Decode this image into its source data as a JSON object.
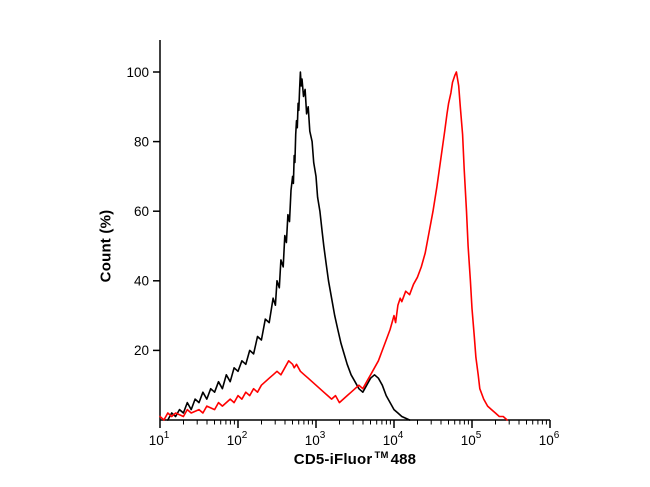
{
  "figure": {
    "background": "#ffffff"
  },
  "chart_data": {
    "type": "line",
    "subtype": "flow-cytometry-overlay-histogram",
    "title": "",
    "ylabel": "Count (%)",
    "xlabel_parts": {
      "main": "CD5-iFluor",
      "tm": "TM",
      "suffix": "488"
    },
    "x_scale": "log",
    "xlog_range": [
      1,
      6
    ],
    "x_tick_exponents": [
      1,
      2,
      3,
      4,
      5,
      6
    ],
    "ylim": [
      0,
      105
    ],
    "y_ticks": [
      20,
      40,
      60,
      80,
      100
    ],
    "grid": false,
    "legend": "none",
    "series": [
      {
        "name": "black",
        "color": "#000000",
        "points": [
          [
            1.1,
            0
          ],
          [
            1.15,
            2
          ],
          [
            1.2,
            1
          ],
          [
            1.25,
            3
          ],
          [
            1.3,
            2
          ],
          [
            1.35,
            5
          ],
          [
            1.4,
            3
          ],
          [
            1.45,
            6
          ],
          [
            1.5,
            5
          ],
          [
            1.55,
            8
          ],
          [
            1.6,
            6
          ],
          [
            1.65,
            9
          ],
          [
            1.7,
            8
          ],
          [
            1.75,
            11
          ],
          [
            1.8,
            9
          ],
          [
            1.85,
            13
          ],
          [
            1.9,
            11
          ],
          [
            1.95,
            15
          ],
          [
            2.0,
            14
          ],
          [
            2.05,
            17
          ],
          [
            2.1,
            16
          ],
          [
            2.15,
            20
          ],
          [
            2.2,
            19
          ],
          [
            2.25,
            24
          ],
          [
            2.3,
            23
          ],
          [
            2.35,
            29
          ],
          [
            2.4,
            28
          ],
          [
            2.45,
            35
          ],
          [
            2.48,
            33
          ],
          [
            2.5,
            40
          ],
          [
            2.53,
            38
          ],
          [
            2.55,
            46
          ],
          [
            2.58,
            44
          ],
          [
            2.6,
            53
          ],
          [
            2.62,
            51
          ],
          [
            2.64,
            59
          ],
          [
            2.66,
            57
          ],
          [
            2.68,
            66
          ],
          [
            2.7,
            70
          ],
          [
            2.71,
            68
          ],
          [
            2.72,
            76
          ],
          [
            2.73,
            74
          ],
          [
            2.74,
            82
          ],
          [
            2.75,
            86
          ],
          [
            2.76,
            84
          ],
          [
            2.77,
            91
          ],
          [
            2.78,
            89
          ],
          [
            2.79,
            95
          ],
          [
            2.8,
            100
          ],
          [
            2.81,
            96
          ],
          [
            2.82,
            98
          ],
          [
            2.84,
            93
          ],
          [
            2.86,
            95
          ],
          [
            2.88,
            88
          ],
          [
            2.9,
            90
          ],
          [
            2.92,
            83
          ],
          [
            2.95,
            80
          ],
          [
            2.97,
            74
          ],
          [
            3.0,
            70
          ],
          [
            3.02,
            64
          ],
          [
            3.05,
            60
          ],
          [
            3.08,
            54
          ],
          [
            3.1,
            50
          ],
          [
            3.13,
            45
          ],
          [
            3.16,
            40
          ],
          [
            3.2,
            35
          ],
          [
            3.24,
            30
          ],
          [
            3.28,
            26
          ],
          [
            3.32,
            22
          ],
          [
            3.36,
            19
          ],
          [
            3.4,
            16
          ],
          [
            3.45,
            13
          ],
          [
            3.5,
            11
          ],
          [
            3.55,
            9
          ],
          [
            3.6,
            8
          ],
          [
            3.65,
            10
          ],
          [
            3.7,
            12
          ],
          [
            3.75,
            13
          ],
          [
            3.8,
            12
          ],
          [
            3.85,
            10
          ],
          [
            3.9,
            7
          ],
          [
            3.95,
            5
          ],
          [
            4.0,
            3
          ],
          [
            4.05,
            2
          ],
          [
            4.1,
            1
          ],
          [
            4.2,
            0
          ]
        ]
      },
      {
        "name": "red",
        "color": "#ff0000",
        "points": [
          [
            1.0,
            1
          ],
          [
            1.05,
            0
          ],
          [
            1.1,
            2
          ],
          [
            1.15,
            1
          ],
          [
            1.2,
            2
          ],
          [
            1.3,
            1
          ],
          [
            1.35,
            3
          ],
          [
            1.4,
            2
          ],
          [
            1.5,
            3
          ],
          [
            1.55,
            2
          ],
          [
            1.6,
            4
          ],
          [
            1.7,
            3
          ],
          [
            1.75,
            5
          ],
          [
            1.8,
            4
          ],
          [
            1.9,
            6
          ],
          [
            1.95,
            5
          ],
          [
            2.0,
            7
          ],
          [
            2.05,
            6
          ],
          [
            2.1,
            8
          ],
          [
            2.15,
            7
          ],
          [
            2.2,
            9
          ],
          [
            2.25,
            8
          ],
          [
            2.3,
            10
          ],
          [
            2.35,
            11
          ],
          [
            2.4,
            12
          ],
          [
            2.45,
            13
          ],
          [
            2.5,
            14
          ],
          [
            2.55,
            13
          ],
          [
            2.6,
            15
          ],
          [
            2.65,
            17
          ],
          [
            2.7,
            16
          ],
          [
            2.72,
            15
          ],
          [
            2.75,
            16
          ],
          [
            2.8,
            14
          ],
          [
            2.85,
            13
          ],
          [
            2.9,
            12
          ],
          [
            2.95,
            11
          ],
          [
            3.0,
            10
          ],
          [
            3.05,
            9
          ],
          [
            3.1,
            8
          ],
          [
            3.15,
            7
          ],
          [
            3.2,
            6
          ],
          [
            3.25,
            7
          ],
          [
            3.3,
            5
          ],
          [
            3.35,
            6
          ],
          [
            3.4,
            7
          ],
          [
            3.45,
            8
          ],
          [
            3.5,
            9
          ],
          [
            3.55,
            10
          ],
          [
            3.6,
            9
          ],
          [
            3.65,
            11
          ],
          [
            3.7,
            13
          ],
          [
            3.75,
            15
          ],
          [
            3.8,
            17
          ],
          [
            3.85,
            20
          ],
          [
            3.9,
            23
          ],
          [
            3.95,
            26
          ],
          [
            4.0,
            30
          ],
          [
            4.02,
            28
          ],
          [
            4.05,
            33
          ],
          [
            4.08,
            35
          ],
          [
            4.1,
            34
          ],
          [
            4.15,
            37
          ],
          [
            4.2,
            36
          ],
          [
            4.25,
            39
          ],
          [
            4.3,
            41
          ],
          [
            4.35,
            44
          ],
          [
            4.4,
            48
          ],
          [
            4.45,
            54
          ],
          [
            4.5,
            60
          ],
          [
            4.55,
            67
          ],
          [
            4.6,
            75
          ],
          [
            4.65,
            83
          ],
          [
            4.68,
            88
          ],
          [
            4.7,
            91
          ],
          [
            4.73,
            94
          ],
          [
            4.75,
            97
          ],
          [
            4.78,
            99
          ],
          [
            4.8,
            100
          ],
          [
            4.83,
            96
          ],
          [
            4.85,
            90
          ],
          [
            4.88,
            82
          ],
          [
            4.9,
            72
          ],
          [
            4.93,
            60
          ],
          [
            4.95,
            50
          ],
          [
            4.98,
            40
          ],
          [
            5.0,
            32
          ],
          [
            5.03,
            24
          ],
          [
            5.05,
            18
          ],
          [
            5.08,
            13
          ],
          [
            5.1,
            9
          ],
          [
            5.15,
            6
          ],
          [
            5.2,
            4
          ],
          [
            5.25,
            3
          ],
          [
            5.3,
            2
          ],
          [
            5.35,
            1
          ],
          [
            5.4,
            1
          ],
          [
            5.45,
            0
          ]
        ]
      }
    ]
  }
}
